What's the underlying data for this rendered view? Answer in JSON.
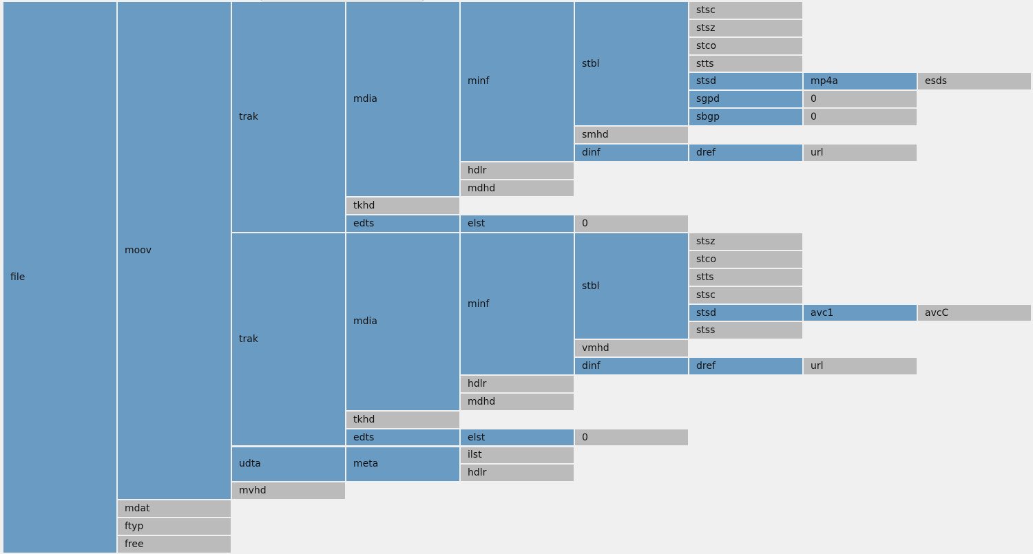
{
  "colors": {
    "branch": "#6a9bc3",
    "leaf": "#bbbbbb",
    "background": "#f0f0f0"
  },
  "tree": {
    "label": "file",
    "children": [
      {
        "label": "moov",
        "children": [
          {
            "label": "trak",
            "children": [
              {
                "label": "mdia",
                "children": [
                  {
                    "label": "minf",
                    "children": [
                      {
                        "label": "stbl",
                        "children": [
                          {
                            "label": "stsc"
                          },
                          {
                            "label": "stsz"
                          },
                          {
                            "label": "stco"
                          },
                          {
                            "label": "stts"
                          },
                          {
                            "label": "stsd",
                            "children": [
                              {
                                "label": "mp4a",
                                "children": [
                                  {
                                    "label": "esds"
                                  }
                                ]
                              }
                            ]
                          },
                          {
                            "label": "sgpd",
                            "children": [
                              {
                                "label": "0"
                              }
                            ]
                          },
                          {
                            "label": "sbgp",
                            "children": [
                              {
                                "label": "0"
                              }
                            ]
                          }
                        ]
                      },
                      {
                        "label": "smhd"
                      },
                      {
                        "label": "dinf",
                        "children": [
                          {
                            "label": "dref",
                            "children": [
                              {
                                "label": "url"
                              }
                            ]
                          }
                        ]
                      }
                    ]
                  },
                  {
                    "label": "hdlr"
                  },
                  {
                    "label": "mdhd"
                  }
                ]
              },
              {
                "label": "tkhd"
              },
              {
                "label": "edts",
                "children": [
                  {
                    "label": "elst",
                    "children": [
                      {
                        "label": "0"
                      }
                    ]
                  }
                ]
              }
            ]
          },
          {
            "label": "trak",
            "children": [
              {
                "label": "mdia",
                "children": [
                  {
                    "label": "minf",
                    "children": [
                      {
                        "label": "stbl",
                        "children": [
                          {
                            "label": "stsz"
                          },
                          {
                            "label": "stco"
                          },
                          {
                            "label": "stts"
                          },
                          {
                            "label": "stsc"
                          },
                          {
                            "label": "stsd",
                            "children": [
                              {
                                "label": "avc1",
                                "children": [
                                  {
                                    "label": "avcC"
                                  }
                                ]
                              }
                            ]
                          },
                          {
                            "label": "stss"
                          }
                        ]
                      },
                      {
                        "label": "vmhd"
                      },
                      {
                        "label": "dinf",
                        "children": [
                          {
                            "label": "dref",
                            "children": [
                              {
                                "label": "url"
                              }
                            ]
                          }
                        ]
                      }
                    ]
                  },
                  {
                    "label": "hdlr"
                  },
                  {
                    "label": "mdhd"
                  }
                ]
              },
              {
                "label": "tkhd"
              },
              {
                "label": "edts",
                "children": [
                  {
                    "label": "elst",
                    "children": [
                      {
                        "label": "0"
                      }
                    ]
                  }
                ]
              }
            ]
          },
          {
            "label": "udta",
            "children": [
              {
                "label": "meta",
                "children": [
                  {
                    "label": "ilst"
                  },
                  {
                    "label": "hdlr"
                  }
                ]
              }
            ]
          },
          {
            "label": "mvhd"
          }
        ]
      },
      {
        "label": "mdat"
      },
      {
        "label": "ftyp"
      },
      {
        "label": "free"
      }
    ]
  }
}
